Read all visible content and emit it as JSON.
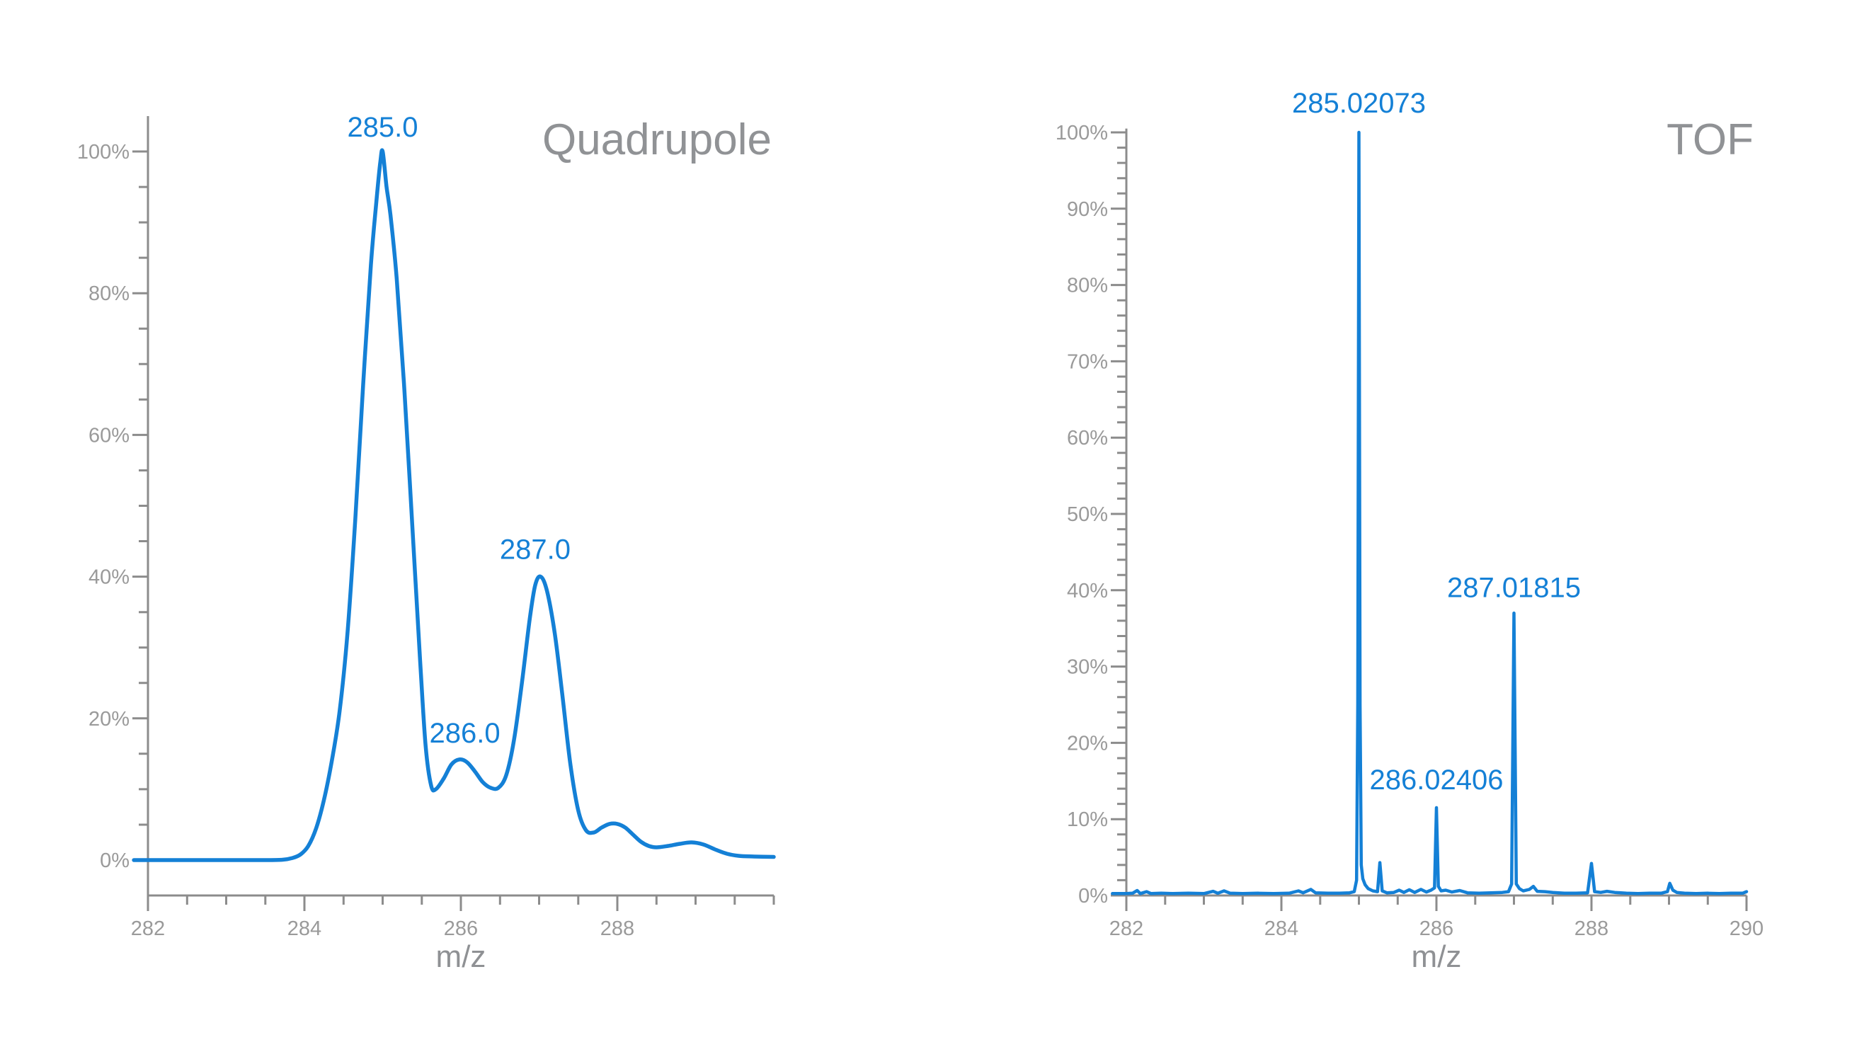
{
  "figure": {
    "background": "#ffffff"
  },
  "colors": {
    "series": "#1480d6",
    "axis": "#8c8c8c",
    "tick_label": "#9a9a9a",
    "axis_title": "#8f9194",
    "chart_title": "#909295",
    "peak_label": "#1480d6"
  },
  "chart_data": [
    {
      "id": "quadrupole",
      "type": "line",
      "title": "Quadrupole",
      "xlabel": "m/z",
      "ylabel": "",
      "grid": false,
      "legend": "none",
      "smooth": true,
      "x_range": [
        282,
        290
      ],
      "y_range": [
        0,
        100
      ],
      "x_major_values": [
        282,
        284,
        286,
        288
      ],
      "x_tick_labels": [
        "282",
        "284",
        "286",
        "288"
      ],
      "x_minor_step": 0.5,
      "y_major_values": [
        0,
        20,
        40,
        60,
        80,
        100
      ],
      "y_tick_labels": [
        "0%",
        "20%",
        "40%",
        "60%",
        "80%",
        "100%"
      ],
      "y_minor_step": 5,
      "peak_labels": [
        {
          "x": 285.0,
          "pct": 103.5,
          "text": "285.0"
        },
        {
          "x": 286.05,
          "pct": 18.0,
          "text": "286.0"
        },
        {
          "x": 286.95,
          "pct": 43.9,
          "text": "287.0"
        }
      ],
      "points": [
        [
          281.82,
          0
        ],
        [
          282,
          0
        ],
        [
          282.4,
          0
        ],
        [
          282.8,
          0
        ],
        [
          283.2,
          0
        ],
        [
          283.5,
          0
        ],
        [
          283.72,
          0.05
        ],
        [
          283.85,
          0.3
        ],
        [
          283.95,
          0.8
        ],
        [
          284.05,
          2
        ],
        [
          284.15,
          4.5
        ],
        [
          284.25,
          8.5
        ],
        [
          284.35,
          14
        ],
        [
          284.45,
          21
        ],
        [
          284.55,
          32
        ],
        [
          284.65,
          48
        ],
        [
          284.75,
          67
        ],
        [
          284.85,
          84
        ],
        [
          284.92,
          93
        ],
        [
          284.97,
          98.5
        ],
        [
          285,
          100
        ],
        [
          285.05,
          95
        ],
        [
          285.1,
          91
        ],
        [
          285.18,
          82
        ],
        [
          285.28,
          66
        ],
        [
          285.38,
          47
        ],
        [
          285.48,
          28
        ],
        [
          285.55,
          16
        ],
        [
          285.62,
          10.5
        ],
        [
          285.68,
          10
        ],
        [
          285.78,
          11.5
        ],
        [
          285.88,
          13.5
        ],
        [
          285.98,
          14.2
        ],
        [
          286.08,
          13.8
        ],
        [
          286.18,
          12.5
        ],
        [
          286.28,
          11
        ],
        [
          286.38,
          10.2
        ],
        [
          286.48,
          10.2
        ],
        [
          286.58,
          12
        ],
        [
          286.68,
          17
        ],
        [
          286.78,
          25
        ],
        [
          286.88,
          34
        ],
        [
          286.95,
          38.8
        ],
        [
          287.02,
          40
        ],
        [
          287.1,
          38
        ],
        [
          287.2,
          32
        ],
        [
          287.3,
          23
        ],
        [
          287.4,
          13.5
        ],
        [
          287.5,
          7
        ],
        [
          287.6,
          4.2
        ],
        [
          287.7,
          3.9
        ],
        [
          287.8,
          4.6
        ],
        [
          287.9,
          5.1
        ],
        [
          288,
          5.1
        ],
        [
          288.1,
          4.6
        ],
        [
          288.2,
          3.6
        ],
        [
          288.3,
          2.6
        ],
        [
          288.4,
          2
        ],
        [
          288.5,
          1.8
        ],
        [
          288.65,
          2
        ],
        [
          288.8,
          2.3
        ],
        [
          288.95,
          2.5
        ],
        [
          289.1,
          2.2
        ],
        [
          289.25,
          1.5
        ],
        [
          289.4,
          0.9
        ],
        [
          289.55,
          0.6
        ],
        [
          289.75,
          0.5
        ],
        [
          290,
          0.45
        ]
      ]
    },
    {
      "id": "tof",
      "type": "line",
      "title": "TOF",
      "xlabel": "m/z",
      "ylabel": "",
      "grid": false,
      "legend": "none",
      "smooth": false,
      "x_range": [
        282,
        290
      ],
      "y_range": [
        0,
        100
      ],
      "x_major_values": [
        282,
        284,
        286,
        288,
        290
      ],
      "x_tick_labels": [
        "282",
        "284",
        "286",
        "288",
        "290"
      ],
      "x_minor_step": 0.5,
      "y_major_values": [
        0,
        10,
        20,
        30,
        40,
        50,
        60,
        70,
        80,
        90,
        100
      ],
      "y_tick_labels": [
        "0%",
        "10%",
        "20%",
        "30%",
        "40%",
        "50%",
        "60%",
        "70%",
        "80%",
        "90%",
        "100%"
      ],
      "y_minor_step": 2,
      "peak_labels": [
        {
          "x": 285.0,
          "pct": 103.9,
          "text": "285.02073"
        },
        {
          "x": 286.0,
          "pct": 15.2,
          "text": "286.02406"
        },
        {
          "x": 287.0,
          "pct": 40.4,
          "text": "287.01815"
        }
      ],
      "points": [
        [
          281.82,
          0.25
        ],
        [
          282,
          0.25
        ],
        [
          282.08,
          0.3
        ],
        [
          282.14,
          0.65
        ],
        [
          282.18,
          0.25
        ],
        [
          282.26,
          0.5
        ],
        [
          282.32,
          0.25
        ],
        [
          282.45,
          0.3
        ],
        [
          282.6,
          0.25
        ],
        [
          282.8,
          0.3
        ],
        [
          283,
          0.25
        ],
        [
          283.12,
          0.55
        ],
        [
          283.18,
          0.3
        ],
        [
          283.26,
          0.6
        ],
        [
          283.34,
          0.3
        ],
        [
          283.5,
          0.25
        ],
        [
          283.7,
          0.3
        ],
        [
          283.9,
          0.25
        ],
        [
          284.1,
          0.3
        ],
        [
          284.22,
          0.6
        ],
        [
          284.28,
          0.35
        ],
        [
          284.38,
          0.8
        ],
        [
          284.44,
          0.35
        ],
        [
          284.6,
          0.3
        ],
        [
          284.75,
          0.3
        ],
        [
          284.88,
          0.35
        ],
        [
          284.94,
          0.5
        ],
        [
          284.97,
          2
        ],
        [
          284.985,
          25
        ],
        [
          285,
          100
        ],
        [
          285.015,
          25
        ],
        [
          285.03,
          4
        ],
        [
          285.05,
          2.2
        ],
        [
          285.08,
          1.4
        ],
        [
          285.12,
          0.9
        ],
        [
          285.18,
          0.6
        ],
        [
          285.24,
          0.5
        ],
        [
          285.27,
          4.3
        ],
        [
          285.3,
          0.6
        ],
        [
          285.36,
          0.35
        ],
        [
          285.45,
          0.4
        ],
        [
          285.52,
          0.7
        ],
        [
          285.58,
          0.4
        ],
        [
          285.65,
          0.75
        ],
        [
          285.72,
          0.4
        ],
        [
          285.8,
          0.8
        ],
        [
          285.87,
          0.45
        ],
        [
          285.93,
          0.7
        ],
        [
          285.975,
          1
        ],
        [
          286,
          11.5
        ],
        [
          286.025,
          1.2
        ],
        [
          286.06,
          0.6
        ],
        [
          286.12,
          0.7
        ],
        [
          286.2,
          0.45
        ],
        [
          286.3,
          0.65
        ],
        [
          286.4,
          0.35
        ],
        [
          286.55,
          0.3
        ],
        [
          286.7,
          0.35
        ],
        [
          286.85,
          0.4
        ],
        [
          286.93,
          0.5
        ],
        [
          286.97,
          1.5
        ],
        [
          287,
          37
        ],
        [
          287.03,
          1.5
        ],
        [
          287.07,
          0.9
        ],
        [
          287.12,
          0.6
        ],
        [
          287.2,
          0.8
        ],
        [
          287.25,
          1.2
        ],
        [
          287.3,
          0.55
        ],
        [
          287.4,
          0.5
        ],
        [
          287.5,
          0.4
        ],
        [
          287.65,
          0.3
        ],
        [
          287.8,
          0.3
        ],
        [
          287.95,
          0.35
        ],
        [
          288,
          4.2
        ],
        [
          288.04,
          0.5
        ],
        [
          288.12,
          0.4
        ],
        [
          288.2,
          0.55
        ],
        [
          288.3,
          0.4
        ],
        [
          288.45,
          0.3
        ],
        [
          288.6,
          0.25
        ],
        [
          288.75,
          0.3
        ],
        [
          288.9,
          0.3
        ],
        [
          288.98,
          0.5
        ],
        [
          289.01,
          1.6
        ],
        [
          289.05,
          0.7
        ],
        [
          289.1,
          0.4
        ],
        [
          289.2,
          0.3
        ],
        [
          289.35,
          0.25
        ],
        [
          289.5,
          0.3
        ],
        [
          289.65,
          0.25
        ],
        [
          289.8,
          0.3
        ],
        [
          289.95,
          0.3
        ],
        [
          290,
          0.5
        ]
      ]
    }
  ]
}
